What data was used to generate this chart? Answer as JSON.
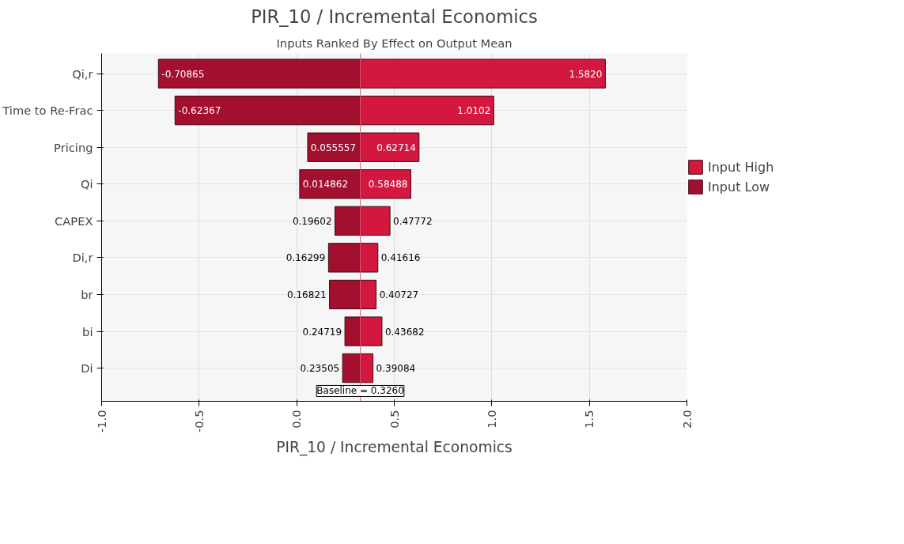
{
  "chart_data": {
    "type": "bar",
    "orientation": "horizontal",
    "title": "PIR_10 / Incremental Economics",
    "subtitle": "Inputs Ranked By Effect on Output Mean",
    "xlabel": "PIR_10 / Incremental Economics",
    "categories": [
      "Qi,r",
      "Time to Re-Frac",
      "Pricing",
      "Qi",
      "CAPEX",
      "Di,r",
      "br",
      "bi",
      "Di"
    ],
    "series": [
      {
        "name": "Input Low",
        "color": "#a30f2e",
        "base": [
          -0.709,
          -0.624,
          0.056,
          0.015,
          0.196,
          0.163,
          0.168,
          0.247,
          0.235
        ],
        "values": [
          1.035,
          0.95,
          0.27,
          0.311,
          0.13,
          0.163,
          0.158,
          0.079,
          0.091
        ]
      },
      {
        "name": "Input High",
        "color": "#d3173e",
        "base": [
          0.326,
          0.326,
          0.326,
          0.326,
          0.326,
          0.326,
          0.326,
          0.326,
          0.326
        ],
        "values": [
          1.256,
          0.684,
          0.301,
          0.259,
          0.152,
          0.09,
          0.081,
          0.111,
          0.065
        ]
      }
    ],
    "annotations": [
      {
        "text": "-0.70865",
        "x": -0.70865,
        "y": "Qi,r"
      },
      {
        "text": "1.5820",
        "x": 1.582,
        "y": "Qi,r"
      },
      {
        "text": "-0.62367",
        "x": -0.62367,
        "y": "Time to Re-Frac"
      },
      {
        "text": "1.0102",
        "x": 1.0102,
        "y": "Time to Re-Frac"
      },
      {
        "text": "0.055557",
        "x": 0.055557,
        "y": "Pricing"
      },
      {
        "text": "0.62714",
        "x": 0.62714,
        "y": "Pricing"
      },
      {
        "text": "0.014862",
        "x": 0.014862,
        "y": "Qi"
      },
      {
        "text": "0.58488",
        "x": 0.58488,
        "y": "Qi"
      },
      {
        "text": "0.19602",
        "x": 0.19602,
        "y": "CAPEX"
      },
      {
        "text": "0.47772",
        "x": 0.47772,
        "y": "CAPEX"
      },
      {
        "text": "0.16299",
        "x": 0.16299,
        "y": "Di,r"
      },
      {
        "text": "0.41616",
        "x": 0.41616,
        "y": "Di,r"
      },
      {
        "text": "0.16821",
        "x": 0.16821,
        "y": "br"
      },
      {
        "text": "0.40727",
        "x": 0.40727,
        "y": "br"
      },
      {
        "text": "0.24719",
        "x": 0.24719,
        "y": "bi"
      },
      {
        "text": "0.43682",
        "x": 0.43682,
        "y": "bi"
      },
      {
        "text": "0.23505",
        "x": 0.23505,
        "y": "Di"
      },
      {
        "text": "0.39084",
        "x": 0.39084,
        "y": "Di"
      }
    ],
    "xlim": [
      -1.0,
      2.0
    ],
    "xticks": [
      {
        "value": -1.0,
        "label": "-1.0"
      },
      {
        "value": -0.5,
        "label": "-0.5"
      },
      {
        "value": 0.0,
        "label": "0.0"
      },
      {
        "value": 0.5,
        "label": "0.5"
      },
      {
        "value": 1.0,
        "label": "1.0"
      },
      {
        "value": 1.5,
        "label": "1.5"
      },
      {
        "value": 2.0,
        "label": "2.0"
      }
    ],
    "ref_lines": [
      {
        "axis": "x",
        "value": 0.326,
        "label": "Baseline = 0.3260",
        "color": "#e06070"
      }
    ],
    "grid": true,
    "legend": "right"
  }
}
